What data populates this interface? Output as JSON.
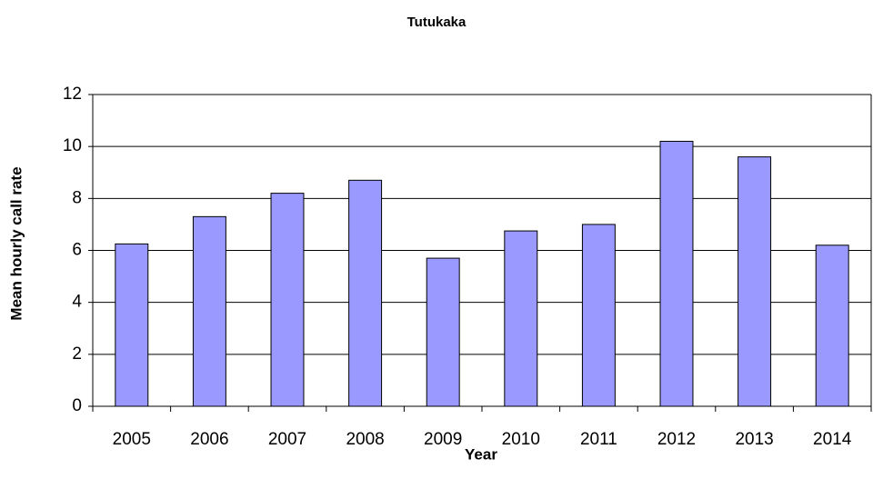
{
  "chart_data": {
    "type": "bar",
    "title": "Tutukaka",
    "x_label": "Year",
    "y_label": "Mean hourly call rate",
    "categories": [
      "2005",
      "2006",
      "2007",
      "2008",
      "2009",
      "2010",
      "2011",
      "2012",
      "2013",
      "2014"
    ],
    "values": [
      6.25,
      7.3,
      8.2,
      8.7,
      5.7,
      6.75,
      7.0,
      10.2,
      9.6,
      6.2
    ],
    "color": "#9999ff",
    "ylim": [
      0,
      12
    ],
    "yticks": [
      0,
      2,
      4,
      6,
      8,
      10,
      12
    ],
    "grid": true
  }
}
